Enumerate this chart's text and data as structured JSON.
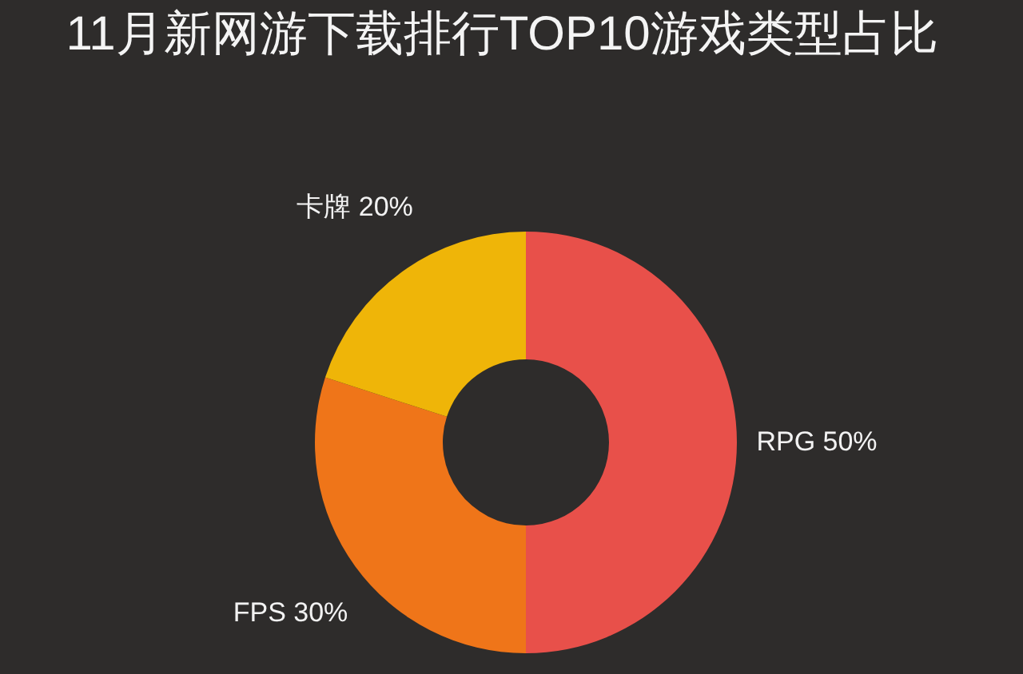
{
  "chart_data": {
    "type": "donut",
    "title": "11月新网游下载排行TOP10游戏类型占比",
    "categories": [
      "RPG",
      "FPS",
      "卡牌"
    ],
    "values": [
      50,
      30,
      20
    ],
    "value_labels": [
      "50%",
      "30%",
      "20%"
    ],
    "colors": [
      "#e8504a",
      "#ef7519",
      "#efb508"
    ]
  }
}
